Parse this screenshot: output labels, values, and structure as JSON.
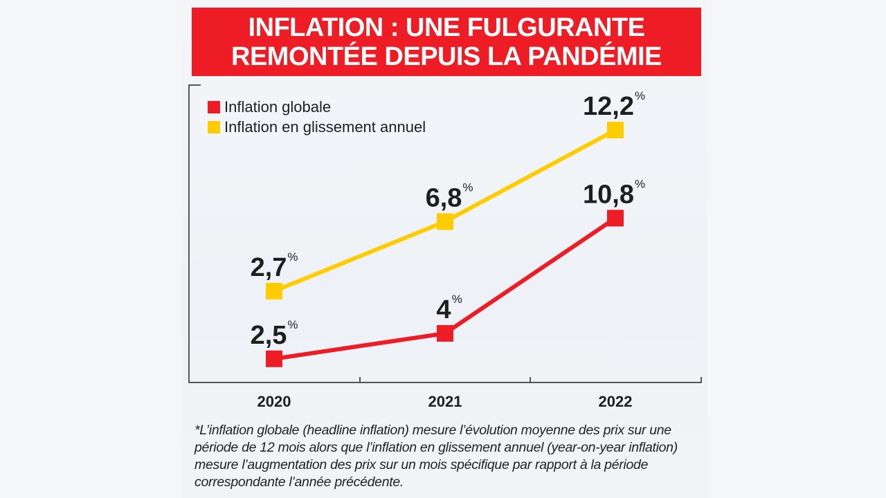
{
  "title_lines": [
    "INFLATION : UNE FULGURANTE",
    "REMONTÉE DEPUIS LA PANDÉMIE"
  ],
  "chart_data": {
    "type": "line",
    "title": "INFLATION : UNE FULGURANTE REMONTÉE DEPUIS LA PANDÉMIE",
    "categories": [
      "2020",
      "2021",
      "2022"
    ],
    "series": [
      {
        "name": "Inflation globale",
        "color": "#ee1c25",
        "values": [
          2.5,
          4,
          10.8
        ],
        "labels": [
          "2,5",
          "4",
          "10,8"
        ]
      },
      {
        "name": "Inflation en glissement annuel",
        "color": "#ffcc00",
        "values": [
          2.7,
          6.8,
          12.2
        ],
        "labels": [
          "2,7",
          "6,8",
          "12,2"
        ]
      }
    ],
    "unit": "%",
    "legend": "top-left",
    "grid": false
  },
  "footnote": "*L’inflation globale (headline inflation) mesure l’évolution moyenne des prix sur une période de 12 mois alors que l’inflation en glissement annuel (year-on-year inflation) mesure l’augmentation des prix sur un mois spécifique par rapport à la période correspondante l’année précédente."
}
